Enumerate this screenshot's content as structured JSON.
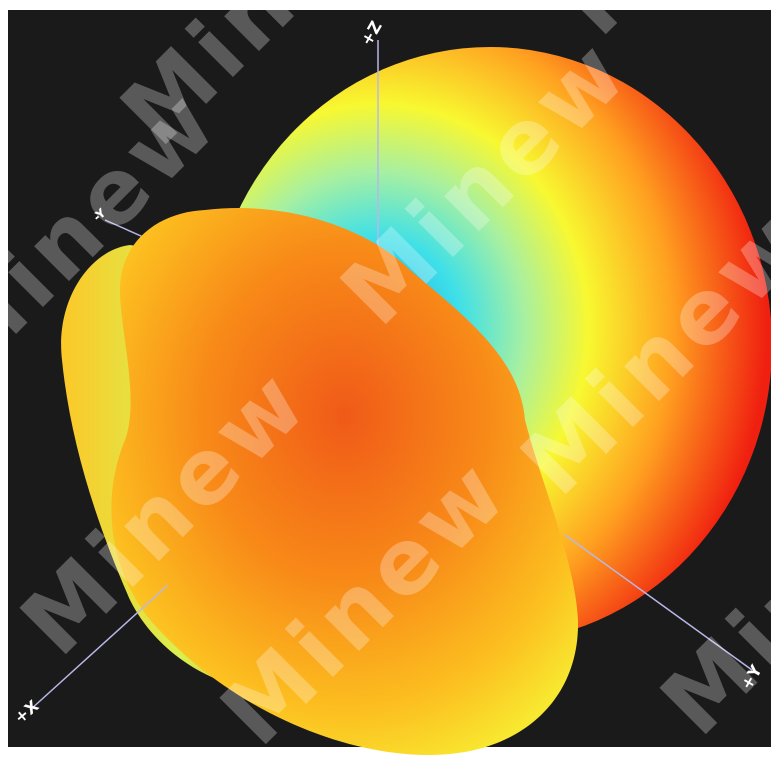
{
  "axes": {
    "z": "+Z",
    "x": "+X",
    "y": "+Y",
    "y_neg": "-Y"
  },
  "watermark": "Minew"
}
